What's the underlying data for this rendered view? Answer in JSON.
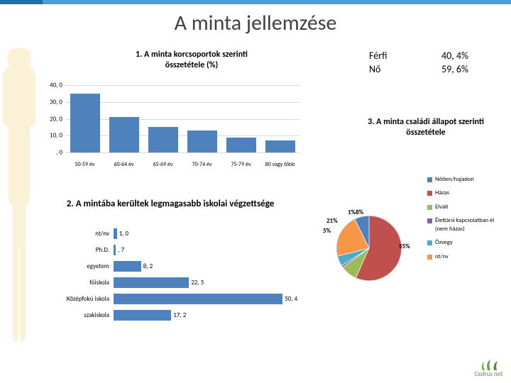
{
  "title": "A minta jellemzése",
  "gender": {
    "rows": [
      {
        "label": "Férfi",
        "value": "40, 4%"
      },
      {
        "label": "Nő",
        "value": "59, 6%"
      }
    ]
  },
  "chart1": {
    "type": "bar",
    "title": "1. A minta korcsoportok szerinti összetétele (%)",
    "ylim": [
      0,
      40
    ],
    "ytick_step": 10,
    "yticks": [
      "40, 0",
      "30, 0",
      "20, 0",
      "10, 0",
      ", 0"
    ],
    "categories": [
      "50-59 év",
      "60-64 év",
      "65-69 év",
      "70-74 év",
      "75-79 év",
      "80 vagy több"
    ],
    "values": [
      35,
      21,
      15,
      13,
      9,
      7
    ],
    "bar_color": "#4f81bd",
    "grid_color": "#d9d9d9",
    "label_fontsize": 8
  },
  "chart3": {
    "title": "3. A minta családi állapot szerinti összetétele",
    "type": "pie",
    "slices": [
      {
        "label": "Nőtlen/hajadon",
        "value": 7,
        "color": "#4f81bd"
      },
      {
        "label": "Házas",
        "value": 55,
        "color": "#c0504d"
      },
      {
        "label": "Elvált",
        "value": 8,
        "color": "#9bbb59"
      },
      {
        "label": "Élettársi kapcsolatban él (nem házas)",
        "value": 1,
        "color": "#8064a2"
      },
      {
        "label": "Özvegy",
        "value": 5,
        "color": "#4bacc6"
      },
      {
        "label": "nt/nv",
        "value": 21,
        "color": "#f79646"
      }
    ],
    "callouts": {
      "pct55": "55%",
      "pct21": "21%",
      "pct5": "5%",
      "pct198": "1%8%"
    }
  },
  "chart2": {
    "type": "bar-horizontal",
    "title": "2. A mintába kerültek legmagasabb iskolai végzettsége",
    "xlim": [
      0,
      55
    ],
    "bar_color": "#4f81bd",
    "rows": [
      {
        "label": "nt/nv",
        "value": 1.0,
        "text": "1, 0"
      },
      {
        "label": "Ph.D.",
        "value": 0.7,
        "text": ", 7"
      },
      {
        "label": "egyetem",
        "value": 8.2,
        "text": "8, 2"
      },
      {
        "label": "főiskola",
        "value": 22.5,
        "text": "22, 5"
      },
      {
        "label": "Középfokú iskola",
        "value": 50.4,
        "text": "50, 4"
      },
      {
        "label": "szakiskola",
        "value": 17.2,
        "text": "17, 2"
      }
    ]
  },
  "logo": {
    "text": "Cedrus net"
  },
  "colors": {
    "accent_dark": "#1f6fa8",
    "accent_light": "#4a9fd8",
    "text": "#404040",
    "bar": "#4f81bd",
    "silhouette": "#f2d98f"
  }
}
